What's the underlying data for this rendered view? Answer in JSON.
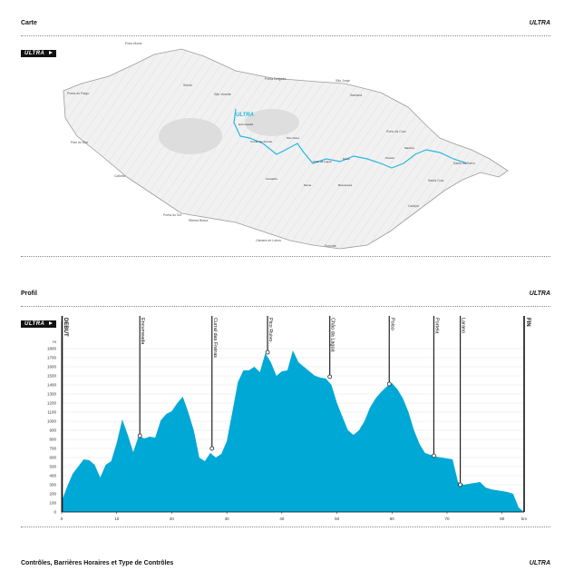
{
  "map_section": {
    "title": "Carte",
    "tag": "ULTRA",
    "badge": "ULTRA",
    "route_label": "ULTRA",
    "places": [
      "Porto Moniz",
      "Seixal",
      "São Vicente",
      "Ponta Delgada",
      "São Jorge",
      "Santana",
      "Ponta do Pargo",
      "Paul do Mar",
      "Calheta",
      "Ponta do Sol",
      "Ribeira Brava",
      "Câmara de Lobos",
      "Funchal",
      "Encumeada",
      "Curral das Freiras",
      "Pico Ruivo",
      "Chão da Lagoa",
      "Poiso",
      "Portela",
      "Porto da Cruz",
      "Machico",
      "Santa Cruz",
      "Caniçal",
      "Santo da Serra",
      "Camacha",
      "Monte",
      "Boaventura",
      "Arco de São Jorge"
    ]
  },
  "profile_section": {
    "title": "Profil",
    "tag": "ULTRA",
    "badge": "ULTRA",
    "start_label": "DEBUT",
    "finish_label": "FIN"
  },
  "controls_section": {
    "title": "Contrôles, Barrières Horaires et Type de Contrôles",
    "tag": "ULTRA"
  },
  "colors": {
    "profile_fill": "#00a8d6",
    "route": "#28b7e0",
    "ink": "#111111"
  },
  "chart_data": {
    "type": "area",
    "x_unit": "km",
    "y_unit": "m",
    "xlim": [
      0,
      84
    ],
    "ylim": [
      0,
      1800
    ],
    "x_ticks": [
      0,
      10,
      20,
      30,
      40,
      50,
      60,
      70,
      80
    ],
    "y_ticks": [
      0,
      100,
      200,
      300,
      400,
      500,
      600,
      700,
      800,
      900,
      1000,
      1100,
      1200,
      1300,
      1400,
      1500,
      1600,
      1700,
      1800
    ],
    "x": [
      0,
      1,
      2,
      3,
      4,
      5,
      6,
      7,
      8,
      9,
      10,
      11,
      12,
      13,
      14,
      15,
      16,
      17,
      18,
      19,
      20,
      21,
      22,
      23,
      24,
      25,
      26,
      27,
      28,
      29,
      30,
      31,
      32,
      33,
      34,
      35,
      36,
      37,
      38,
      39,
      40,
      41,
      42,
      43,
      44,
      45,
      46,
      47,
      48,
      49,
      50,
      51,
      52,
      53,
      54,
      55,
      56,
      57,
      58,
      59,
      60,
      61,
      62,
      63,
      64,
      65,
      66,
      67,
      68,
      69,
      70,
      71,
      72,
      73,
      74,
      75,
      76,
      77,
      78,
      79,
      80,
      81,
      82,
      83,
      84
    ],
    "y": [
      120,
      280,
      420,
      500,
      580,
      570,
      520,
      380,
      520,
      560,
      760,
      1020,
      850,
      660,
      840,
      810,
      830,
      820,
      1010,
      1080,
      1110,
      1200,
      1270,
      1100,
      900,
      600,
      560,
      650,
      600,
      640,
      780,
      1100,
      1430,
      1560,
      1560,
      1600,
      1540,
      1750,
      1650,
      1500,
      1550,
      1560,
      1780,
      1650,
      1600,
      1550,
      1500,
      1480,
      1470,
      1400,
      1200,
      1050,
      900,
      850,
      900,
      1000,
      1150,
      1250,
      1320,
      1380,
      1420,
      1350,
      1250,
      1100,
      900,
      750,
      650,
      630,
      610,
      600,
      590,
      580,
      330,
      300,
      310,
      320,
      330,
      270,
      250,
      240,
      230,
      220,
      200,
      50,
      0
    ],
    "checkpoints": [
      {
        "name": "Encumeada",
        "km": 14.2,
        "alt": 840
      },
      {
        "name": "Curral das Freiras",
        "km": 27.3,
        "alt": 700
      },
      {
        "name": "Pico Ruivo",
        "km": 37.4,
        "alt": 1760
      },
      {
        "name": "Chão da Lagoa",
        "km": 48.7,
        "alt": 1490
      },
      {
        "name": "Poiso",
        "km": 59.5,
        "alt": 1410
      },
      {
        "name": "Portela",
        "km": 67.6,
        "alt": 620
      },
      {
        "name": "Larano",
        "km": 72.4,
        "alt": 300
      }
    ]
  }
}
